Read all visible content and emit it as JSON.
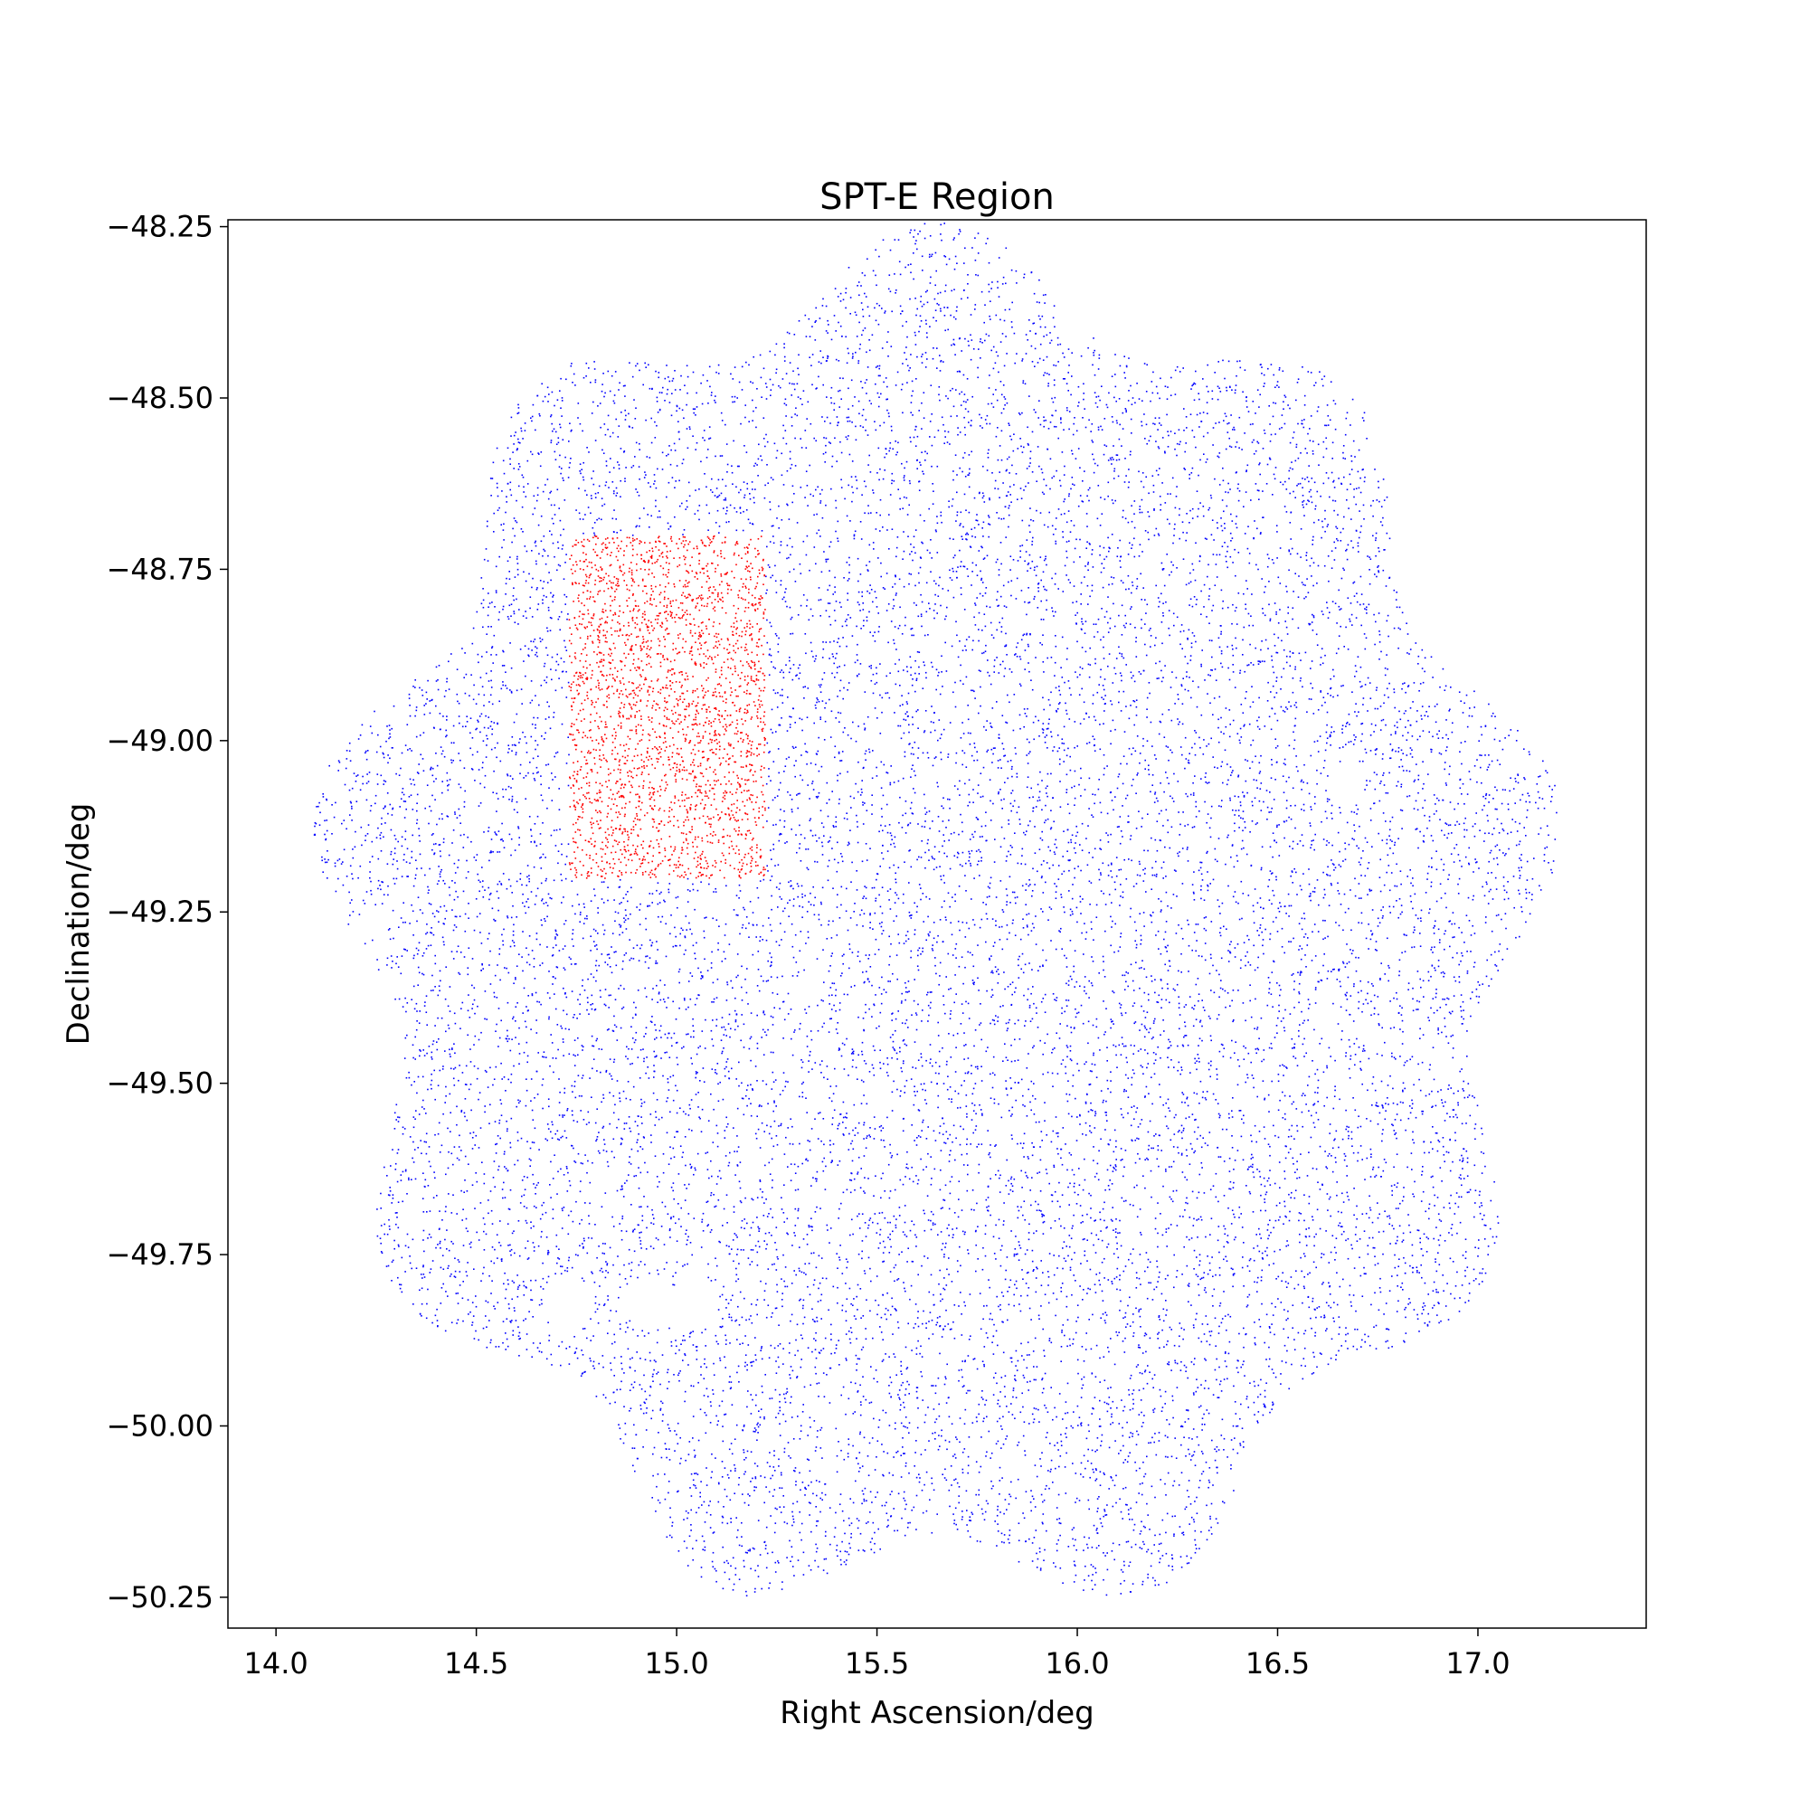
{
  "chart_data": {
    "type": "scatter",
    "title": "SPT-E Region",
    "xlabel": "Right Ascension/deg",
    "ylabel": "Declination/deg",
    "xlim": [
      13.88,
      17.42
    ],
    "ylim": [
      -50.295,
      -48.24
    ],
    "x_ticks": [
      14.0,
      14.5,
      15.0,
      15.5,
      16.0,
      16.5,
      17.0
    ],
    "x_tick_labels": [
      "14.0",
      "14.5",
      "15.0",
      "15.5",
      "16.0",
      "16.5",
      "17.0"
    ],
    "y_ticks": [
      -48.25,
      -48.5,
      -48.75,
      -49.0,
      -49.25,
      -49.5,
      -49.75,
      -50.0,
      -50.25
    ],
    "y_tick_labels": [
      "−48.25",
      "−48.50",
      "−48.75",
      "−49.00",
      "−49.25",
      "−49.50",
      "−49.75",
      "−50.00",
      "−50.25"
    ],
    "grid": false,
    "legend": "none",
    "series": [
      {
        "color": "#0000ff",
        "marker": "point",
        "footprint_center": [
          15.65,
          -49.27
        ],
        "footprint_radius_deg": 1.03,
        "footprint_holes": [
          {
            "center": [
              14.73,
              -49.82
            ],
            "radius": 0.04
          },
          {
            "center": [
              14.93,
              -49.82
            ],
            "radius": 0.04
          },
          {
            "center": [
              15.04,
              -49.82
            ],
            "radius": 0.04
          },
          {
            "center": [
              16.67,
              -49.06
            ],
            "radius": 0.03
          },
          {
            "center": [
              16.0,
              -48.38
            ],
            "radius": 0.04
          }
        ],
        "density_description": "approximately uniform scatter of sources"
      },
      {
        "color": "#ff0000",
        "marker": "point",
        "ra_range": [
          14.73,
          15.22
        ],
        "dec_range": [
          -49.2,
          -48.7
        ],
        "density_description": "selected rectangular sub-region"
      }
    ]
  }
}
